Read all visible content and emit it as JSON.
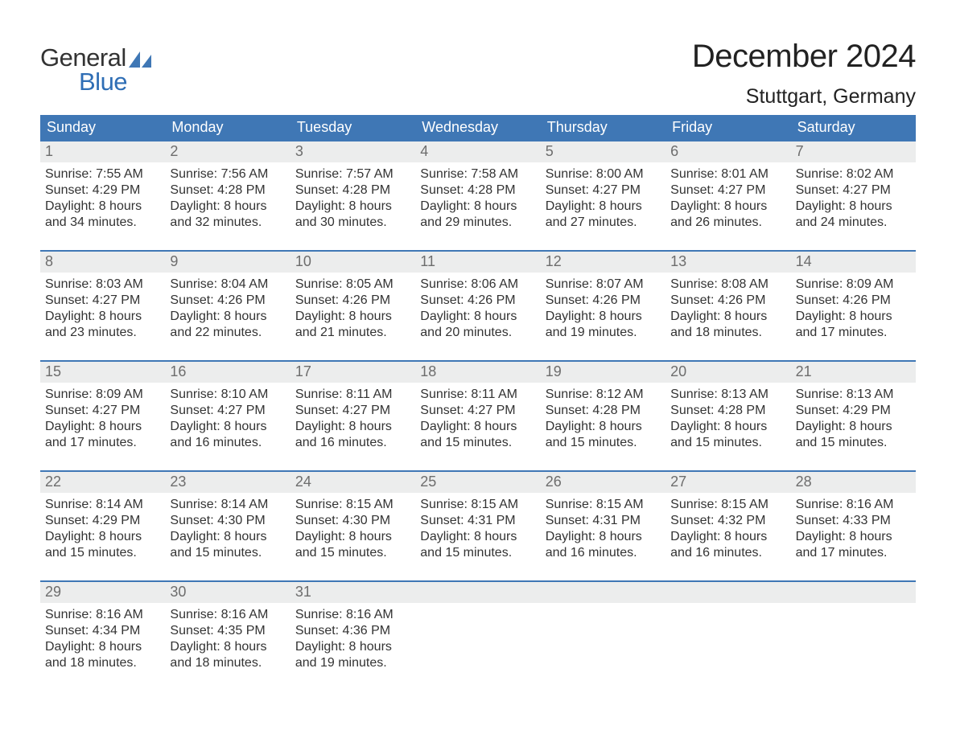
{
  "brand": {
    "word1": "General",
    "word2": "Blue"
  },
  "colors": {
    "header_bg": "#3f77b5",
    "header_text": "#ffffff",
    "daynum_bg": "#eceded",
    "daynum_text": "#6d6d6d",
    "body_text": "#333333",
    "brand_blue": "#2f6eb5",
    "week_border": "#3f77b5",
    "page_bg": "#ffffff",
    "title_text": "#222222"
  },
  "typography": {
    "month_title_fontsize": 40,
    "location_fontsize": 25,
    "weekday_fontsize": 18,
    "daynum_fontsize": 18,
    "body_fontsize": 16,
    "brand_fontsize": 31
  },
  "title": {
    "month": "December 2024",
    "location": "Stuttgart, Germany"
  },
  "weekdays": [
    "Sunday",
    "Monday",
    "Tuesday",
    "Wednesday",
    "Thursday",
    "Friday",
    "Saturday"
  ],
  "weeks": [
    [
      {
        "num": "1",
        "sunrise": "Sunrise: 7:55 AM",
        "sunset": "Sunset: 4:29 PM",
        "day1": "Daylight: 8 hours",
        "day2": "and 34 minutes."
      },
      {
        "num": "2",
        "sunrise": "Sunrise: 7:56 AM",
        "sunset": "Sunset: 4:28 PM",
        "day1": "Daylight: 8 hours",
        "day2": "and 32 minutes."
      },
      {
        "num": "3",
        "sunrise": "Sunrise: 7:57 AM",
        "sunset": "Sunset: 4:28 PM",
        "day1": "Daylight: 8 hours",
        "day2": "and 30 minutes."
      },
      {
        "num": "4",
        "sunrise": "Sunrise: 7:58 AM",
        "sunset": "Sunset: 4:28 PM",
        "day1": "Daylight: 8 hours",
        "day2": "and 29 minutes."
      },
      {
        "num": "5",
        "sunrise": "Sunrise: 8:00 AM",
        "sunset": "Sunset: 4:27 PM",
        "day1": "Daylight: 8 hours",
        "day2": "and 27 minutes."
      },
      {
        "num": "6",
        "sunrise": "Sunrise: 8:01 AM",
        "sunset": "Sunset: 4:27 PM",
        "day1": "Daylight: 8 hours",
        "day2": "and 26 minutes."
      },
      {
        "num": "7",
        "sunrise": "Sunrise: 8:02 AM",
        "sunset": "Sunset: 4:27 PM",
        "day1": "Daylight: 8 hours",
        "day2": "and 24 minutes."
      }
    ],
    [
      {
        "num": "8",
        "sunrise": "Sunrise: 8:03 AM",
        "sunset": "Sunset: 4:27 PM",
        "day1": "Daylight: 8 hours",
        "day2": "and 23 minutes."
      },
      {
        "num": "9",
        "sunrise": "Sunrise: 8:04 AM",
        "sunset": "Sunset: 4:26 PM",
        "day1": "Daylight: 8 hours",
        "day2": "and 22 minutes."
      },
      {
        "num": "10",
        "sunrise": "Sunrise: 8:05 AM",
        "sunset": "Sunset: 4:26 PM",
        "day1": "Daylight: 8 hours",
        "day2": "and 21 minutes."
      },
      {
        "num": "11",
        "sunrise": "Sunrise: 8:06 AM",
        "sunset": "Sunset: 4:26 PM",
        "day1": "Daylight: 8 hours",
        "day2": "and 20 minutes."
      },
      {
        "num": "12",
        "sunrise": "Sunrise: 8:07 AM",
        "sunset": "Sunset: 4:26 PM",
        "day1": "Daylight: 8 hours",
        "day2": "and 19 minutes."
      },
      {
        "num": "13",
        "sunrise": "Sunrise: 8:08 AM",
        "sunset": "Sunset: 4:26 PM",
        "day1": "Daylight: 8 hours",
        "day2": "and 18 minutes."
      },
      {
        "num": "14",
        "sunrise": "Sunrise: 8:09 AM",
        "sunset": "Sunset: 4:26 PM",
        "day1": "Daylight: 8 hours",
        "day2": "and 17 minutes."
      }
    ],
    [
      {
        "num": "15",
        "sunrise": "Sunrise: 8:09 AM",
        "sunset": "Sunset: 4:27 PM",
        "day1": "Daylight: 8 hours",
        "day2": "and 17 minutes."
      },
      {
        "num": "16",
        "sunrise": "Sunrise: 8:10 AM",
        "sunset": "Sunset: 4:27 PM",
        "day1": "Daylight: 8 hours",
        "day2": "and 16 minutes."
      },
      {
        "num": "17",
        "sunrise": "Sunrise: 8:11 AM",
        "sunset": "Sunset: 4:27 PM",
        "day1": "Daylight: 8 hours",
        "day2": "and 16 minutes."
      },
      {
        "num": "18",
        "sunrise": "Sunrise: 8:11 AM",
        "sunset": "Sunset: 4:27 PM",
        "day1": "Daylight: 8 hours",
        "day2": "and 15 minutes."
      },
      {
        "num": "19",
        "sunrise": "Sunrise: 8:12 AM",
        "sunset": "Sunset: 4:28 PM",
        "day1": "Daylight: 8 hours",
        "day2": "and 15 minutes."
      },
      {
        "num": "20",
        "sunrise": "Sunrise: 8:13 AM",
        "sunset": "Sunset: 4:28 PM",
        "day1": "Daylight: 8 hours",
        "day2": "and 15 minutes."
      },
      {
        "num": "21",
        "sunrise": "Sunrise: 8:13 AM",
        "sunset": "Sunset: 4:29 PM",
        "day1": "Daylight: 8 hours",
        "day2": "and 15 minutes."
      }
    ],
    [
      {
        "num": "22",
        "sunrise": "Sunrise: 8:14 AM",
        "sunset": "Sunset: 4:29 PM",
        "day1": "Daylight: 8 hours",
        "day2": "and 15 minutes."
      },
      {
        "num": "23",
        "sunrise": "Sunrise: 8:14 AM",
        "sunset": "Sunset: 4:30 PM",
        "day1": "Daylight: 8 hours",
        "day2": "and 15 minutes."
      },
      {
        "num": "24",
        "sunrise": "Sunrise: 8:15 AM",
        "sunset": "Sunset: 4:30 PM",
        "day1": "Daylight: 8 hours",
        "day2": "and 15 minutes."
      },
      {
        "num": "25",
        "sunrise": "Sunrise: 8:15 AM",
        "sunset": "Sunset: 4:31 PM",
        "day1": "Daylight: 8 hours",
        "day2": "and 15 minutes."
      },
      {
        "num": "26",
        "sunrise": "Sunrise: 8:15 AM",
        "sunset": "Sunset: 4:31 PM",
        "day1": "Daylight: 8 hours",
        "day2": "and 16 minutes."
      },
      {
        "num": "27",
        "sunrise": "Sunrise: 8:15 AM",
        "sunset": "Sunset: 4:32 PM",
        "day1": "Daylight: 8 hours",
        "day2": "and 16 minutes."
      },
      {
        "num": "28",
        "sunrise": "Sunrise: 8:16 AM",
        "sunset": "Sunset: 4:33 PM",
        "day1": "Daylight: 8 hours",
        "day2": "and 17 minutes."
      }
    ],
    [
      {
        "num": "29",
        "sunrise": "Sunrise: 8:16 AM",
        "sunset": "Sunset: 4:34 PM",
        "day1": "Daylight: 8 hours",
        "day2": "and 18 minutes."
      },
      {
        "num": "30",
        "sunrise": "Sunrise: 8:16 AM",
        "sunset": "Sunset: 4:35 PM",
        "day1": "Daylight: 8 hours",
        "day2": "and 18 minutes."
      },
      {
        "num": "31",
        "sunrise": "Sunrise: 8:16 AM",
        "sunset": "Sunset: 4:36 PM",
        "day1": "Daylight: 8 hours",
        "day2": "and 19 minutes."
      },
      null,
      null,
      null,
      null
    ]
  ]
}
